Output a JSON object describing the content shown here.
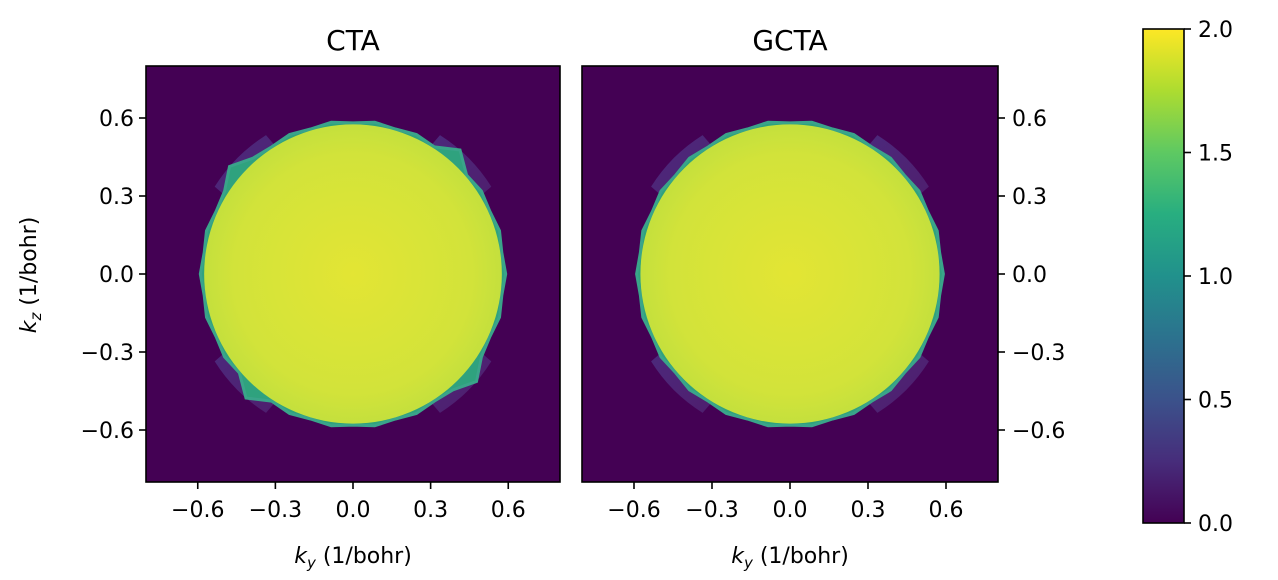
{
  "chart_data": {
    "type": "heatmap",
    "panels": [
      {
        "title": "CTA",
        "xlabel": {
          "base": "k",
          "sub": "y",
          "unit": " (1/bohr)"
        },
        "ylabel": {
          "base": "k",
          "sub": "z",
          "unit": " (1/bohr)"
        },
        "xlim": [
          -0.8,
          0.8
        ],
        "ylim": [
          -0.8,
          0.8
        ],
        "xticks": [
          -0.6,
          -0.3,
          0.0,
          0.3,
          0.6
        ],
        "xtick_labels": [
          "−0.6",
          "−0.3",
          "0.0",
          "0.3",
          "0.6"
        ],
        "yticks": [
          0.6,
          0.3,
          0.0,
          -0.3,
          -0.6
        ],
        "ytick_labels": [
          "0.6",
          "0.3",
          "0.0",
          "−0.3",
          "−0.6"
        ],
        "ytick_side": "left",
        "central_disk": {
          "radius": 0.59,
          "value_center": 1.85,
          "value_edge": 1.68,
          "spikes": true
        },
        "corner_lobe_value": 0.25
      },
      {
        "title": "GCTA",
        "xlabel": {
          "base": "k",
          "sub": "y",
          "unit": " (1/bohr)"
        },
        "xlim": [
          -0.8,
          0.8
        ],
        "ylim": [
          -0.8,
          0.8
        ],
        "xticks": [
          -0.6,
          -0.3,
          0.0,
          0.3,
          0.6
        ],
        "xtick_labels": [
          "−0.6",
          "−0.3",
          "0.0",
          "0.3",
          "0.6"
        ],
        "yticks": [
          0.6,
          0.3,
          0.0,
          -0.3,
          -0.6
        ],
        "ytick_labels": [
          "0.6",
          "0.3",
          "0.0",
          "−0.3",
          "−0.6"
        ],
        "ytick_side": "right",
        "central_disk": {
          "radius": 0.59,
          "value_center": 1.85,
          "value_edge": 1.68,
          "spikes": false
        },
        "corner_lobe_value": 0.25
      }
    ],
    "background_value": 0.0,
    "colorbar": {
      "colormap": "viridis",
      "range": [
        0.0,
        2.0
      ],
      "ticks": [
        0.0,
        0.5,
        1.0,
        1.5,
        2.0
      ],
      "tick_labels": [
        "0.0",
        "0.5",
        "1.0",
        "1.5",
        "2.0"
      ]
    }
  }
}
